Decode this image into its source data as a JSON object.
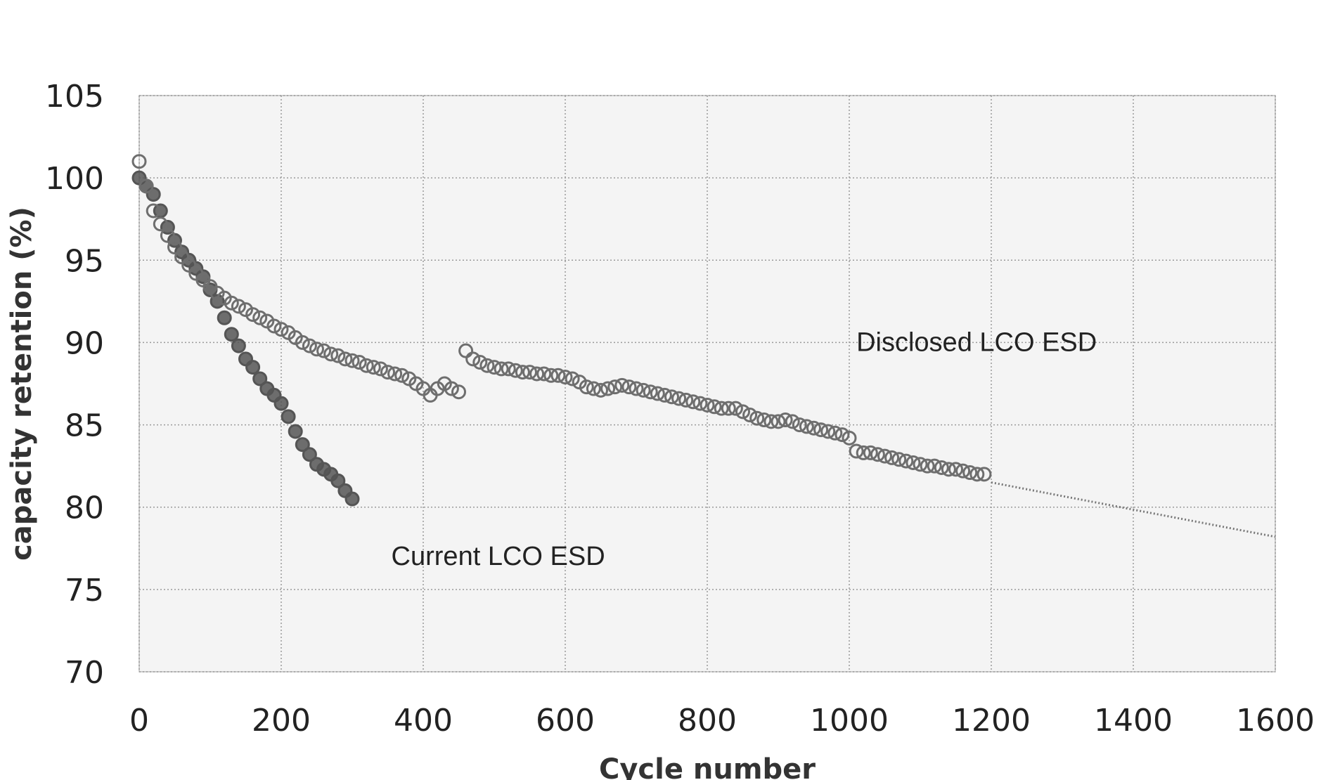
{
  "chart_data": {
    "type": "scatter",
    "title": "",
    "xlabel": "Cycle number",
    "ylabel": "capacity retention (%)",
    "xlim": [
      0,
      1600
    ],
    "ylim": [
      70,
      105
    ],
    "x_ticks": [
      0,
      200,
      400,
      600,
      800,
      1000,
      1200,
      1400,
      1600
    ],
    "y_ticks": [
      70,
      75,
      80,
      85,
      90,
      95,
      100,
      105
    ],
    "x_tick_labels": [
      "0",
      "200",
      "400",
      "600",
      "800",
      "1000",
      "1200",
      "1400",
      "1600"
    ],
    "y_tick_labels": [
      "70",
      "75",
      "80",
      "85",
      "90",
      "95",
      "100",
      "105"
    ],
    "grid": true,
    "annotations": [
      {
        "text": "Disclosed LCO ESD",
        "x": 1010,
        "y": 90
      },
      {
        "text": "Current LCO ESD",
        "x": 355,
        "y": 77
      }
    ],
    "series": [
      {
        "name": "Current LCO ESD",
        "marker": "filled-dark-circle",
        "color": "#555555",
        "x": [
          0,
          10,
          20,
          30,
          40,
          50,
          60,
          70,
          80,
          90,
          100,
          110,
          120,
          130,
          140,
          150,
          160,
          170,
          180,
          190,
          200,
          210,
          220,
          230,
          240,
          250,
          260,
          270,
          280,
          290,
          300
        ],
        "y": [
          100,
          99.5,
          99,
          98,
          97,
          96.2,
          95.5,
          95,
          94.5,
          94,
          93.2,
          92.5,
          91.5,
          90.5,
          89.8,
          89,
          88.5,
          87.8,
          87.2,
          86.8,
          86.3,
          85.5,
          84.6,
          83.8,
          83.2,
          82.6,
          82.3,
          82,
          81.6,
          81,
          80.5
        ]
      },
      {
        "name": "Disclosed LCO ESD",
        "marker": "open-circle",
        "color": "#6e6e6e",
        "x": [
          0,
          10,
          20,
          30,
          40,
          50,
          60,
          70,
          80,
          90,
          100,
          110,
          120,
          130,
          140,
          150,
          160,
          170,
          180,
          190,
          200,
          210,
          220,
          230,
          240,
          250,
          260,
          270,
          280,
          290,
          300,
          310,
          320,
          330,
          340,
          350,
          360,
          370,
          380,
          390,
          400,
          410,
          420,
          430,
          440,
          450,
          460,
          470,
          480,
          490,
          500,
          510,
          520,
          530,
          540,
          550,
          560,
          570,
          580,
          590,
          600,
          610,
          620,
          630,
          640,
          650,
          660,
          670,
          680,
          690,
          700,
          710,
          720,
          730,
          740,
          750,
          760,
          770,
          780,
          790,
          800,
          810,
          820,
          830,
          840,
          850,
          860,
          870,
          880,
          890,
          900,
          910,
          920,
          930,
          940,
          950,
          960,
          970,
          980,
          990,
          1000,
          1010,
          1020,
          1030,
          1040,
          1050,
          1060,
          1070,
          1080,
          1090,
          1100,
          1110,
          1120,
          1130,
          1140,
          1150,
          1160,
          1170,
          1180,
          1190
        ],
        "y": [
          101,
          99.5,
          98,
          97.2,
          96.5,
          95.8,
          95.2,
          94.7,
          94.2,
          93.8,
          93.4,
          93,
          92.7,
          92.4,
          92.2,
          92,
          91.7,
          91.5,
          91.3,
          91,
          90.8,
          90.6,
          90.3,
          90,
          89.8,
          89.6,
          89.5,
          89.3,
          89.2,
          89,
          88.9,
          88.8,
          88.6,
          88.5,
          88.4,
          88.2,
          88.1,
          88,
          87.8,
          87.5,
          87.2,
          86.8,
          87.2,
          87.5,
          87.2,
          87,
          89.5,
          89,
          88.8,
          88.6,
          88.5,
          88.4,
          88.4,
          88.3,
          88.2,
          88.2,
          88.1,
          88.1,
          88,
          88,
          87.9,
          87.8,
          87.6,
          87.3,
          87.2,
          87.1,
          87.2,
          87.3,
          87.4,
          87.3,
          87.2,
          87.1,
          87,
          86.9,
          86.8,
          86.7,
          86.6,
          86.5,
          86.4,
          86.3,
          86.2,
          86.1,
          86,
          86,
          86,
          85.8,
          85.6,
          85.4,
          85.3,
          85.2,
          85.2,
          85.3,
          85.2,
          85,
          84.9,
          84.8,
          84.7,
          84.6,
          84.5,
          84.4,
          84.2,
          83.4,
          83.3,
          83.3,
          83.2,
          83.1,
          83,
          82.9,
          82.8,
          82.7,
          82.6,
          82.5,
          82.5,
          82.4,
          82.3,
          82.3,
          82.2,
          82.1,
          82,
          82
        ]
      },
      {
        "name": "Disclosed LCO ESD (extrapolated)",
        "style": "dotted-line",
        "color": "#777777",
        "x": [
          1200,
          1600
        ],
        "y": [
          81.5,
          78.2
        ]
      }
    ]
  }
}
